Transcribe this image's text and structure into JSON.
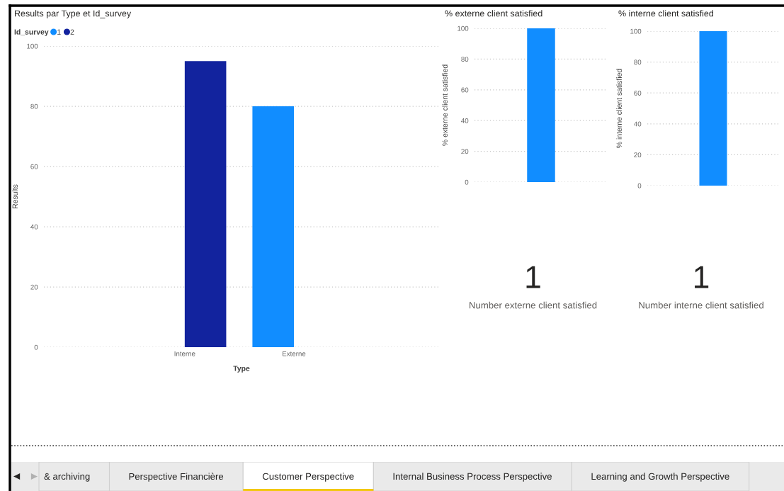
{
  "chart_data": [
    {
      "type": "bar",
      "title": "Results par Type et Id_survey",
      "xlabel": "Type",
      "ylabel": "Results",
      "legend_title": "Id_survey",
      "categories": [
        "Interne",
        "Externe"
      ],
      "series": [
        {
          "name": "1",
          "color": "#118dff",
          "values": [
            null,
            80
          ]
        },
        {
          "name": "2",
          "color": "#12239e",
          "values": [
            95,
            null
          ]
        }
      ],
      "ylim": [
        0,
        100
      ],
      "yticks": [
        0,
        20,
        40,
        60,
        80,
        100
      ],
      "grid": "y",
      "legend": "top left"
    },
    {
      "type": "bar",
      "title": "% externe client satisfied",
      "ylabel": "% externe client satisfied",
      "categories": [
        null
      ],
      "values": [
        100
      ],
      "color": "#118dff",
      "ylim": [
        0,
        100
      ],
      "yticks": [
        0,
        20,
        40,
        60,
        80,
        100
      ],
      "grid": "y",
      "tick_labels": "y"
    },
    {
      "type": "bar",
      "title": "% interne client satisfied",
      "ylabel": "% interne client satisfied",
      "categories": [
        null
      ],
      "values": [
        100
      ],
      "color": "#118dff",
      "ylim": [
        0,
        100
      ],
      "yticks": [
        0,
        20,
        40,
        60,
        80,
        100
      ],
      "grid": "y",
      "tick_labels": "y"
    },
    {
      "type": "other",
      "categories": [
        "Number externe client satisfied"
      ],
      "values": [
        1
      ],
      "data_labels": true
    },
    {
      "type": "other",
      "categories": [
        "Number interne client satisfied"
      ],
      "values": [
        1
      ],
      "data_labels": true
    },
    {
      "type": "other",
      "categories": [
        "& archiving",
        "Perspective Financière",
        "Customer Perspective",
        "Internal Business Process Perspective",
        "Learning and Growth Perspective"
      ],
      "colors": [
        "#eaeaea",
        "#eaeaea",
        "#ffffff",
        "#eaeaea",
        "#eaeaea"
      ]
    }
  ]
}
